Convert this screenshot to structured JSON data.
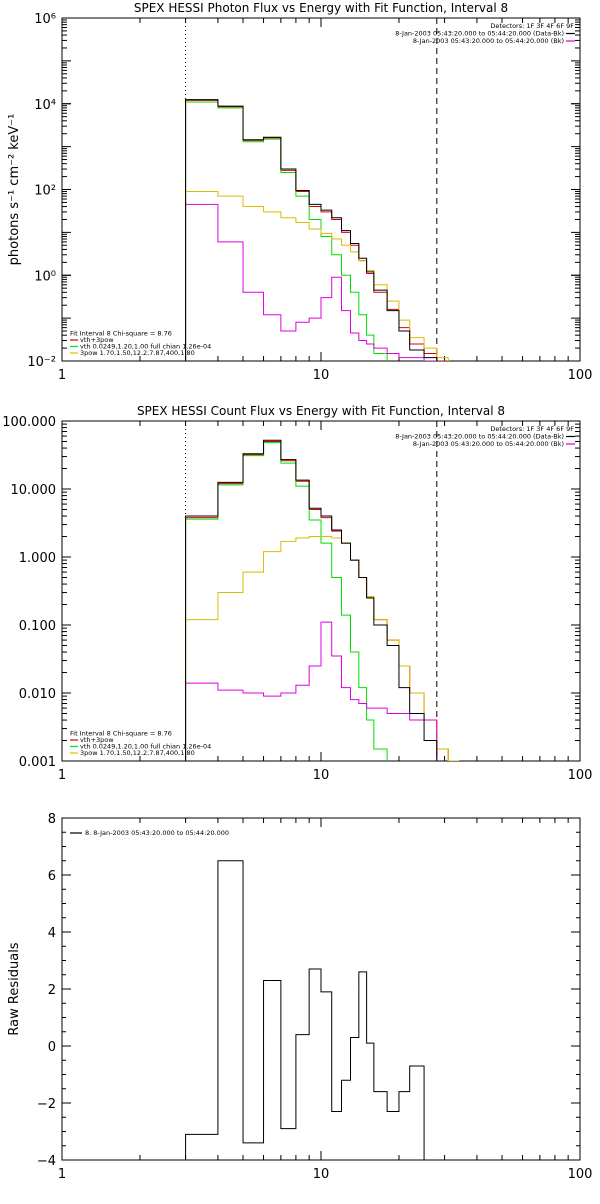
{
  "chart_data": [
    {
      "id": "photon",
      "type": "line",
      "title": "SPEX HESSI Photon Flux vs Energy with Fit Function, Interval 8",
      "xlabel": "",
      "ylabel": "photons s⁻¹ cm⁻² keV⁻¹",
      "xscale": "log",
      "yscale": "log",
      "xlim": [
        1,
        100
      ],
      "ylim": [
        0.01,
        1000000
      ],
      "xticks": [
        1,
        10,
        100
      ],
      "xtick_labels": [
        "1",
        "10",
        "100"
      ],
      "yticks": [
        0.01,
        1,
        100,
        10000,
        1000000
      ],
      "ytick_labels": [
        "10⁻²",
        "10⁰",
        "10²",
        "10⁴",
        "10⁶"
      ],
      "vlines": [
        {
          "x": 3,
          "style": "dotted"
        },
        {
          "x": 28,
          "style": "dashed"
        }
      ],
      "bin_edges": [
        3,
        4,
        5,
        6,
        7,
        8,
        9,
        10,
        11,
        12,
        13,
        14,
        15,
        16,
        18,
        20,
        22,
        25,
        28,
        31
      ],
      "series": [
        {
          "name": "vth+3pow",
          "color": "#dd0000",
          "values": [
            12000,
            8500,
            1400,
            1600,
            280,
            90,
            40,
            30,
            20,
            10,
            5,
            2.2,
            1.1,
            0.4,
            0.16,
            0.06,
            0.025,
            0.015,
            0.01
          ]
        },
        {
          "name": "vth 0.0249,1.20,1.00  full chian 1.26e-04",
          "color": "#00dd00",
          "values": [
            11000,
            8000,
            1300,
            1500,
            250,
            70,
            20,
            8,
            3,
            1,
            0.4,
            0.12,
            0.04,
            0.015,
            0.008
          ]
        },
        {
          "name": "3pow 1.70,1.50,12.2,7.87,400,1.80",
          "color": "#ddbb00",
          "values": [
            90,
            70,
            40,
            30,
            22,
            17,
            12,
            9.5,
            7,
            5,
            3.5,
            2.2,
            1.3,
            0.6,
            0.25,
            0.09,
            0.035,
            0.02,
            0.012
          ]
        },
        {
          "name": "",
          "color": "#dd00dd",
          "values": [
            45,
            6,
            0.4,
            0.12,
            0.05,
            0.08,
            0.1,
            0.3,
            0.9,
            0.15,
            0.045,
            0.03,
            0.025,
            0.02,
            0.015,
            0.012,
            0.012,
            0.01
          ]
        },
        {
          "name": "",
          "color": "#000000",
          "values": [
            12500,
            8800,
            1450,
            1650,
            300,
            95,
            45,
            33,
            22,
            11,
            5.5,
            2.5,
            1.2,
            0.45,
            0.15,
            0.05,
            0.018,
            0.012
          ]
        }
      ],
      "legend_topright": [
        {
          "text": "Detectors: 1F 3F 4F 6F 9F",
          "color": ""
        },
        {
          "text": "8-Jan-2003 05:43:20.000 to 05:44:20.000 (Data-Bk)",
          "color": "#000000"
        },
        {
          "text": "8-Jan-2003 05:43:20.000 to 05:44:20.000 (Bk)",
          "color": "#dd00dd"
        }
      ],
      "legend_bottomleft_title": "Fit Interval 8   Chi-square = 8.76",
      "legend_bottomleft": [
        {
          "text": "vth+3pow",
          "color": "#dd0000"
        },
        {
          "text": "vth 0.0249,1.20,1.00  full chian 1.26e-04",
          "color": "#00dd00"
        },
        {
          "text": "3pow 1.70,1.50,12.2,7.87,400,1.80",
          "color": "#ddbb00"
        }
      ]
    },
    {
      "id": "count",
      "type": "line",
      "title": "SPEX HESSI Count Flux vs Energy with Fit Function, Interval 8",
      "xlabel": "",
      "ylabel": "",
      "xscale": "log",
      "yscale": "log",
      "xlim": [
        1,
        100
      ],
      "ylim": [
        0.001,
        100
      ],
      "xticks": [
        1,
        10,
        100
      ],
      "xtick_labels": [
        "1",
        "10",
        "100"
      ],
      "yticks": [
        0.001,
        0.01,
        0.1,
        1,
        10,
        100
      ],
      "ytick_labels": [
        "0.001",
        "0.010",
        "0.100",
        "1.000",
        "10.000",
        "100.000"
      ],
      "vlines": [
        {
          "x": 3,
          "style": "dotted"
        },
        {
          "x": 28,
          "style": "dashed"
        }
      ],
      "bin_edges": [
        3,
        4,
        5,
        6,
        7,
        8,
        9,
        10,
        11,
        12,
        13,
        14,
        15,
        16,
        18,
        20,
        22,
        25,
        28,
        31,
        34
      ],
      "series": [
        {
          "name": "vth+3pow",
          "color": "#dd0000",
          "values": [
            3.8,
            12,
            32,
            50,
            26,
            13,
            5,
            3.8,
            2.4,
            1.6,
            0.9,
            0.5,
            0.26,
            0.12,
            0.06,
            0.025,
            0.01,
            0.004,
            0.0015
          ]
        },
        {
          "name": "vth 0.0249,1.20,1.00  full chian 1.26e-04",
          "color": "#00dd00",
          "values": [
            3.6,
            11.5,
            31,
            48,
            24,
            11,
            3.5,
            1.6,
            0.5,
            0.14,
            0.04,
            0.012,
            0.004,
            0.0015
          ]
        },
        {
          "name": "3pow 1.70,1.50,12.2,7.87,400,1.80",
          "color": "#ddbb00",
          "values": [
            0.12,
            0.3,
            0.6,
            1.2,
            1.7,
            1.9,
            2.0,
            2.0,
            1.9,
            1.6,
            0.9,
            0.5,
            0.26,
            0.12,
            0.06,
            0.025,
            0.01,
            0.004,
            0.0015,
            0.001
          ]
        },
        {
          "name": "",
          "color": "#dd00dd",
          "values": [
            0.014,
            0.011,
            0.01,
            0.009,
            0.01,
            0.013,
            0.025,
            0.11,
            0.035,
            0.012,
            0.008,
            0.007,
            0.006,
            0.006,
            0.005,
            0.005,
            0.004,
            0.004
          ]
        },
        {
          "name": "",
          "color": "#000000",
          "values": [
            4,
            12.5,
            33,
            52,
            27,
            13.5,
            5.2,
            4,
            2.5,
            1.6,
            0.9,
            0.5,
            0.25,
            0.1,
            0.05,
            0.012,
            0.005,
            0.002
          ]
        }
      ],
      "legend_topright": [
        {
          "text": "Detectors: 1F 3F 4F 6F 9F",
          "color": ""
        },
        {
          "text": "8-Jan-2003 05:43:20.000 to 05:44:20.000 (Data-Bk)",
          "color": "#000000"
        },
        {
          "text": "8-Jan-2003 05:43:20.000 to 05:44:20.000 (Bk)",
          "color": "#dd00dd"
        }
      ],
      "legend_bottomleft_title": "Fit Interval 8   Chi-square = 8.76",
      "legend_bottomleft": [
        {
          "text": "vth+3pow",
          "color": "#dd0000"
        },
        {
          "text": "vth 0.0249,1.20,1.00  full chian 1.26e-04",
          "color": "#00dd00"
        },
        {
          "text": "3pow 1.70,1.50,12.2,7.87,400,1.80",
          "color": "#ddbb00"
        }
      ]
    },
    {
      "id": "resid",
      "type": "line",
      "title": "",
      "xlabel": "",
      "ylabel": "Raw Residuals",
      "xscale": "log",
      "yscale": "linear",
      "xlim": [
        1,
        100
      ],
      "ylim": [
        -4,
        8
      ],
      "xticks": [
        1,
        10,
        100
      ],
      "xtick_labels": [
        "1",
        "10",
        "100"
      ],
      "yticks": [
        -4,
        -2,
        0,
        2,
        4,
        6,
        8
      ],
      "ytick_labels": [
        "−4",
        "−2",
        "0",
        "2",
        "4",
        "6",
        "8"
      ],
      "vlines": [],
      "bin_edges": [
        3,
        4,
        5,
        6,
        7,
        8,
        9,
        10,
        11,
        12,
        13,
        14,
        15,
        16,
        18,
        20,
        22,
        25,
        28
      ],
      "series": [
        {
          "name": "8. 8-Jan-2003 05:43:20.000 to 05:44:20.000",
          "color": "#000000",
          "values": [
            -3.1,
            6.5,
            -3.4,
            2.3,
            -2.9,
            0.4,
            2.7,
            1.9,
            -2.3,
            -1.2,
            0.3,
            2.6,
            0.1,
            -1.6,
            -2.3,
            -1.6,
            -0.7
          ]
        }
      ],
      "legend_topright": [],
      "legend_bottomleft_title": "",
      "legend_bottomleft": [],
      "legend_topleft": [
        {
          "text": "8. 8-Jan-2003 05:43:20.000 to 05:44:20.000",
          "color": "#000000"
        }
      ]
    }
  ]
}
